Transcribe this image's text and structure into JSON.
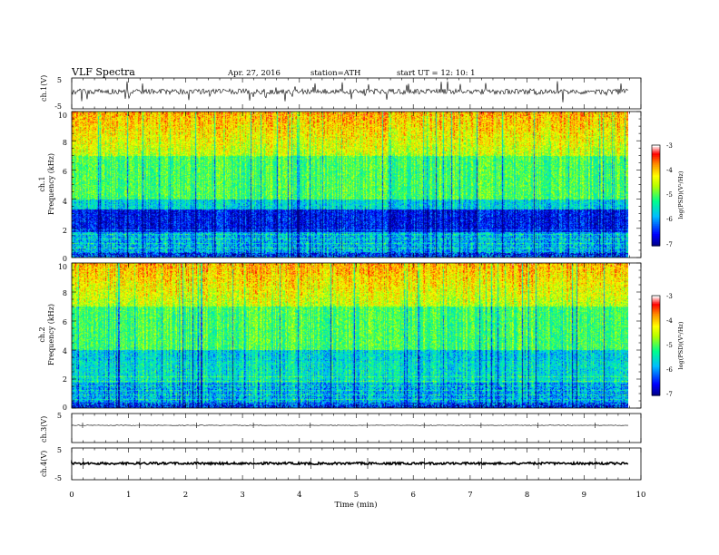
{
  "header": {
    "title": "VLF  Spectra",
    "date": "Apr. 27, 2016",
    "station": "station=ATH",
    "start": "start  UT  =    12: 10: 1"
  },
  "chart_data": [
    {
      "type": "line",
      "panel": "ch1-waveform",
      "ylabel": "ch.1(V)",
      "ylim": [
        -5,
        5
      ],
      "yticks": [
        "5",
        "-5"
      ],
      "trace_color": "#000000"
    },
    {
      "type": "heatmap",
      "panel": "ch1-spectrogram",
      "ylabel_line1": "ch.1",
      "ylabel_line2": "Frequency  (kHz)",
      "ylim": [
        0,
        10
      ],
      "yticks": [
        "10",
        "8",
        "6",
        "4",
        "2",
        "0"
      ],
      "colorbar": {
        "label": "log(PSD)(V²/Hz)",
        "range": [
          -7,
          -3
        ],
        "ticks": [
          "-3",
          "-4",
          "-5",
          "-6",
          "-7"
        ],
        "colors": [
          "#000080",
          "#0000ff",
          "#00c0ff",
          "#00ff80",
          "#ffff00",
          "#ff8000",
          "#ff0000",
          "#ffffff"
        ]
      }
    },
    {
      "type": "heatmap",
      "panel": "ch2-spectrogram",
      "ylabel_line1": "ch.2",
      "ylabel_line2": "Frequency  (kHz)",
      "ylim": [
        0,
        10
      ],
      "yticks": [
        "10",
        "8",
        "6",
        "4",
        "2",
        "0"
      ],
      "colorbar": {
        "label": "log(PSD)(V²/Hz)",
        "range": [
          -7,
          -3
        ],
        "ticks": [
          "-3",
          "-4",
          "-5",
          "-6",
          "-7"
        ],
        "colors": [
          "#000080",
          "#0000ff",
          "#00c0ff",
          "#00ff80",
          "#ffff00",
          "#ff8000",
          "#ff0000",
          "#ffffff"
        ]
      }
    },
    {
      "type": "line",
      "panel": "ch3-waveform",
      "ylabel": "ch.3(V)",
      "ylim": [
        -5,
        5
      ],
      "yticks": [
        "5"
      ],
      "trace_color": "#000000"
    },
    {
      "type": "line",
      "panel": "ch4-waveform",
      "ylabel": "ch.4(V)",
      "ylim": [
        -5,
        5
      ],
      "yticks": [
        "5",
        "-5"
      ],
      "trace_color": "#000000"
    }
  ],
  "xaxis": {
    "label": "Time  (min)",
    "xlim": [
      0,
      10
    ],
    "ticks": [
      "0",
      "1",
      "2",
      "3",
      "4",
      "5",
      "6",
      "7",
      "8",
      "9",
      "10"
    ]
  }
}
